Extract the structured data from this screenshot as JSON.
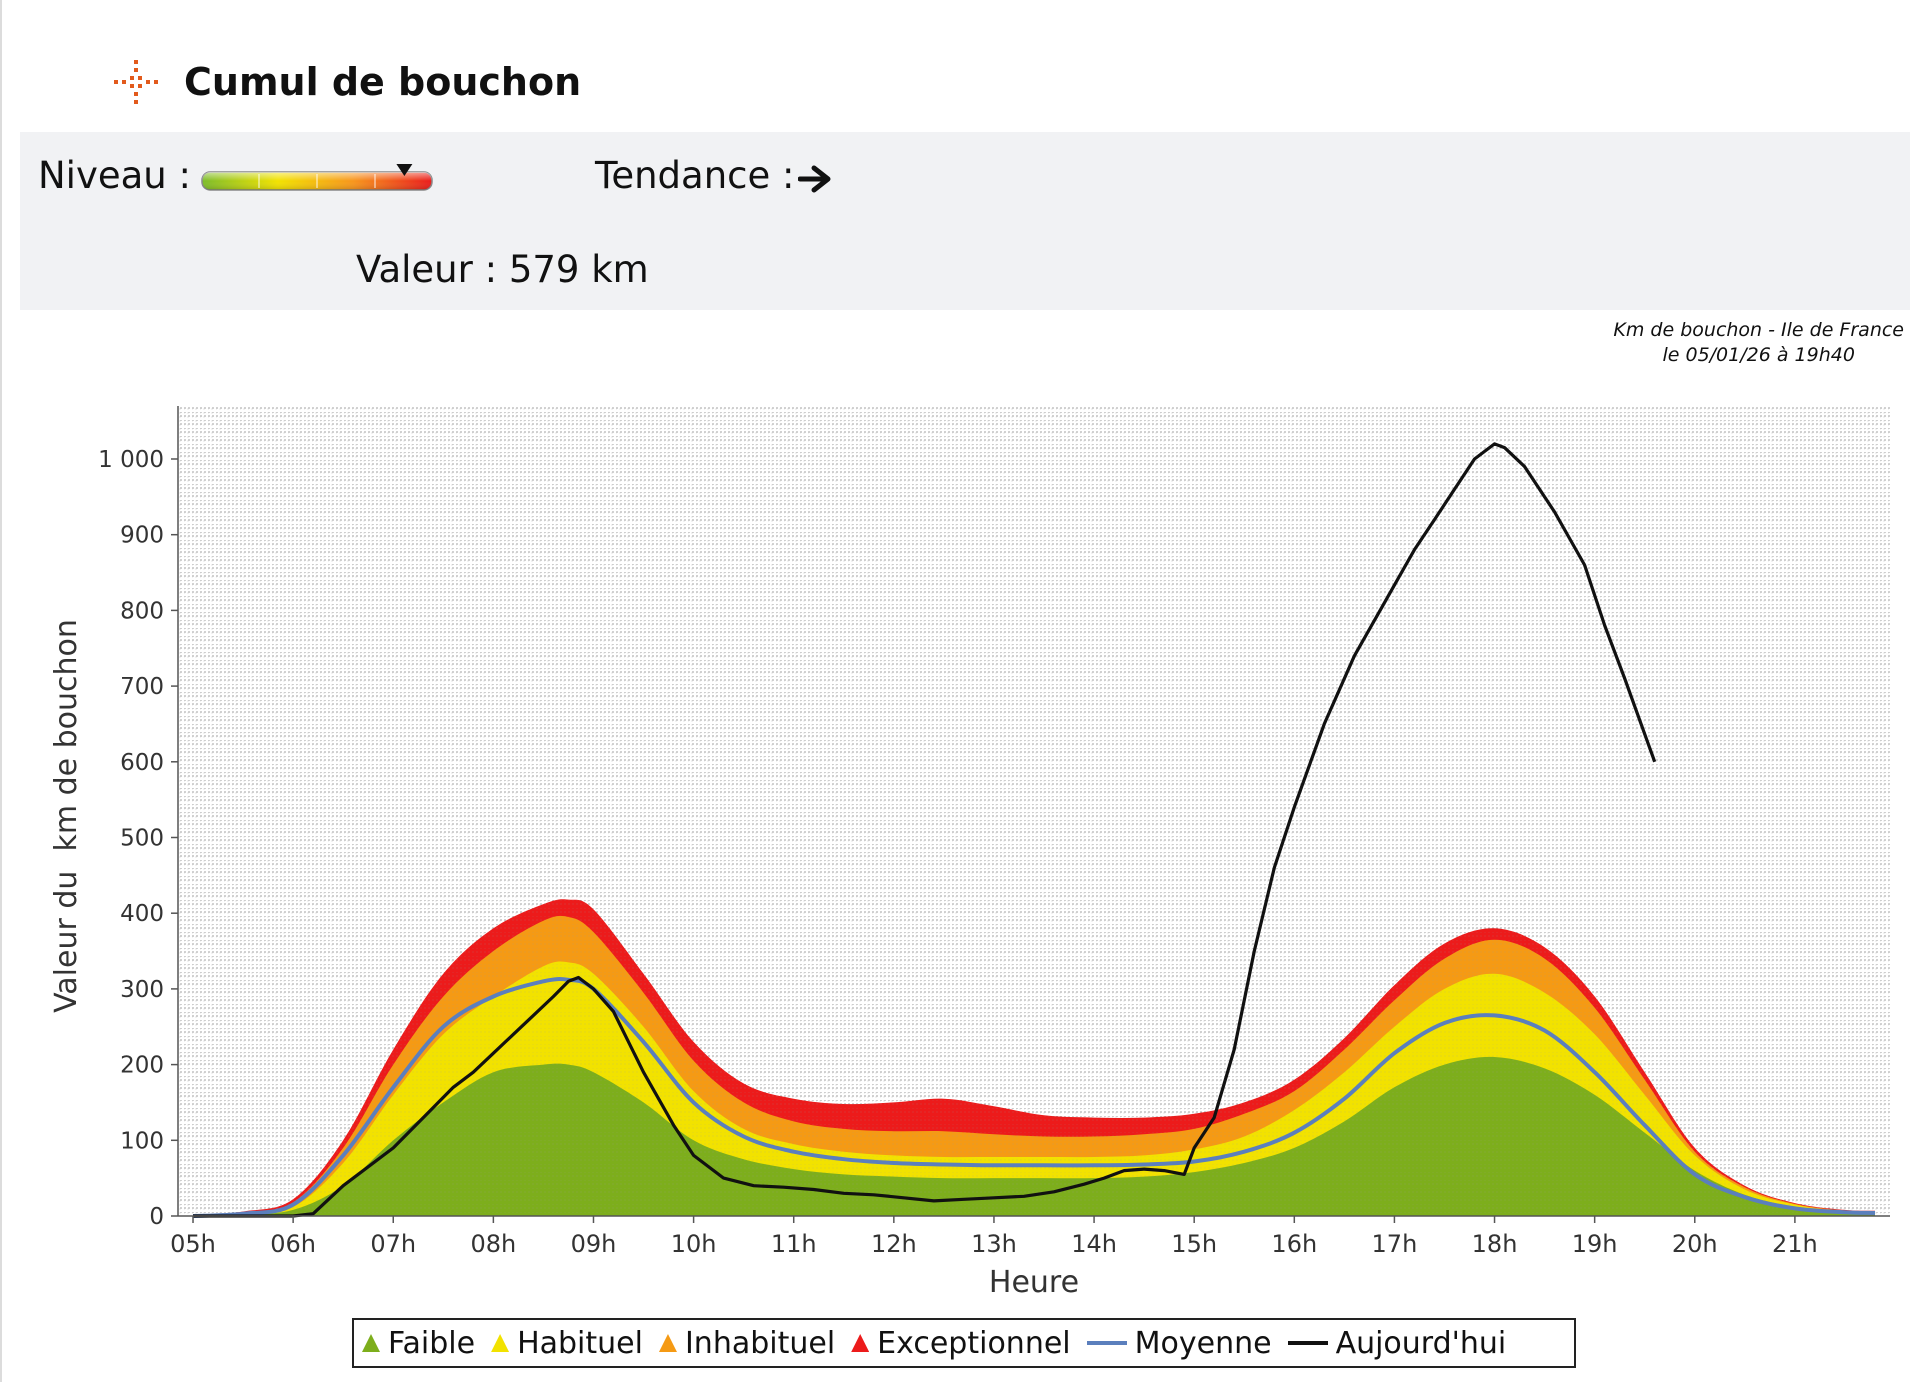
{
  "header": {
    "title": "Cumul de bouchon",
    "icon": "traffic-cross-icon"
  },
  "status_panel": {
    "niveau_label": "Niveau :",
    "level_scale_colors": [
      "#7cbc2a",
      "#f2e200",
      "#f7951c",
      "#ea1c1c"
    ],
    "level_position": 0.88,
    "tendance_label": "Tendance :",
    "tendance_icon": "arrow-right-icon",
    "valeur_label": "Valeur :",
    "valeur_value": "579 km"
  },
  "source_note": {
    "line1": "Km de bouchon - Ile de France",
    "line2": "le 05/01/26 à 19h40"
  },
  "chart_data": {
    "type": "area",
    "title": "",
    "xlabel": "Heure",
    "ylabel": "Valeur du  km de bouchon",
    "x_tick_labels": [
      "05h",
      "06h",
      "07h",
      "08h",
      "09h",
      "10h",
      "11h",
      "12h",
      "13h",
      "14h",
      "15h",
      "16h",
      "17h",
      "18h",
      "19h",
      "20h",
      "21h"
    ],
    "y_tick_labels": [
      "0",
      "100",
      "200",
      "300",
      "400",
      "500",
      "600",
      "700",
      "800",
      "900",
      "1 000"
    ],
    "xlim": [
      4.85,
      21.95
    ],
    "ylim": [
      0,
      1070
    ],
    "grid": true,
    "legend_position": "bottom",
    "x": [
      5.0,
      5.5,
      6.0,
      6.5,
      7.0,
      7.5,
      8.0,
      8.5,
      8.75,
      9.0,
      9.5,
      10.0,
      10.5,
      11.0,
      11.5,
      12.0,
      12.5,
      13.0,
      13.5,
      14.0,
      14.5,
      15.0,
      15.5,
      16.0,
      16.5,
      17.0,
      17.5,
      18.0,
      18.5,
      19.0,
      19.5,
      20.0,
      20.5,
      21.0,
      21.5,
      21.8
    ],
    "series": [
      {
        "name": "Faible",
        "kind": "band",
        "color": "#7dae1c",
        "values": [
          0,
          2,
          8,
          40,
          100,
          150,
          190,
          200,
          200,
          190,
          150,
          100,
          75,
          62,
          55,
          52,
          50,
          50,
          50,
          50,
          52,
          58,
          70,
          90,
          125,
          170,
          200,
          210,
          195,
          160,
          110,
          60,
          28,
          12,
          5,
          4
        ]
      },
      {
        "name": "Habituel",
        "kind": "band",
        "color": "#f2e200",
        "values": [
          0,
          3,
          12,
          70,
          160,
          240,
          290,
          330,
          335,
          320,
          250,
          165,
          115,
          95,
          85,
          80,
          78,
          78,
          78,
          78,
          80,
          88,
          105,
          140,
          190,
          250,
          300,
          320,
          295,
          240,
          160,
          80,
          35,
          15,
          6,
          5
        ]
      },
      {
        "name": "Inhabituel",
        "kind": "band",
        "color": "#f59a14",
        "values": [
          0,
          5,
          18,
          90,
          200,
          290,
          350,
          390,
          395,
          375,
          295,
          205,
          150,
          125,
          115,
          112,
          112,
          108,
          105,
          105,
          108,
          115,
          135,
          165,
          220,
          285,
          340,
          365,
          340,
          275,
          180,
          85,
          38,
          16,
          7,
          6
        ]
      },
      {
        "name": "Exceptionnel",
        "kind": "band",
        "color": "#ec1b1b",
        "values": [
          0,
          6,
          22,
          100,
          220,
          320,
          380,
          412,
          418,
          405,
          320,
          230,
          175,
          155,
          148,
          150,
          155,
          145,
          133,
          130,
          130,
          135,
          150,
          180,
          235,
          305,
          360,
          380,
          355,
          290,
          190,
          90,
          40,
          17,
          8,
          7
        ]
      },
      {
        "name": "Moyenne",
        "kind": "line",
        "color": "#5b7fbd",
        "values": [
          0,
          3,
          15,
          80,
          170,
          250,
          290,
          310,
          312,
          300,
          230,
          150,
          105,
          85,
          75,
          70,
          68,
          67,
          67,
          67,
          68,
          72,
          85,
          110,
          155,
          215,
          255,
          265,
          245,
          190,
          120,
          55,
          25,
          10,
          5,
          4
        ]
      },
      {
        "name": "Aujourd'hui",
        "kind": "line",
        "color": "#111111",
        "x": [
          5.0,
          5.5,
          6.0,
          6.2,
          6.5,
          7.0,
          7.3,
          7.6,
          7.8,
          8.0,
          8.2,
          8.4,
          8.6,
          8.75,
          8.85,
          9.0,
          9.2,
          9.5,
          9.8,
          10.0,
          10.3,
          10.6,
          10.9,
          11.2,
          11.5,
          11.8,
          12.1,
          12.4,
          12.7,
          13.0,
          13.3,
          13.6,
          13.9,
          14.1,
          14.3,
          14.5,
          14.7,
          14.9,
          15.0,
          15.2,
          15.4,
          15.6,
          15.8,
          16.0,
          16.3,
          16.6,
          16.9,
          17.2,
          17.4,
          17.6,
          17.8,
          18.0,
          18.1,
          18.3,
          18.6,
          18.9,
          19.1,
          19.3,
          19.6
        ],
        "values": [
          0,
          0,
          0,
          3,
          40,
          90,
          130,
          170,
          190,
          215,
          240,
          265,
          290,
          310,
          315,
          300,
          270,
          190,
          120,
          80,
          50,
          40,
          38,
          35,
          30,
          28,
          24,
          20,
          22,
          24,
          26,
          32,
          42,
          50,
          60,
          62,
          60,
          55,
          90,
          130,
          220,
          350,
          460,
          540,
          650,
          740,
          810,
          880,
          920,
          960,
          1000,
          1020,
          1015,
          990,
          930,
          860,
          780,
          710,
          600
        ]
      }
    ]
  },
  "legend": {
    "items": [
      {
        "label": "Faible",
        "color": "#7dae1c",
        "kind": "swatch"
      },
      {
        "label": "Habituel",
        "color": "#f2e200",
        "kind": "swatch"
      },
      {
        "label": "Inhabituel",
        "color": "#f59a14",
        "kind": "swatch"
      },
      {
        "label": "Exceptionnel",
        "color": "#ec1b1b",
        "kind": "swatch"
      },
      {
        "label": "Moyenne",
        "color": "#5b7fbd",
        "kind": "line"
      },
      {
        "label": "Aujourd'hui",
        "color": "#111111",
        "kind": "line"
      }
    ]
  }
}
